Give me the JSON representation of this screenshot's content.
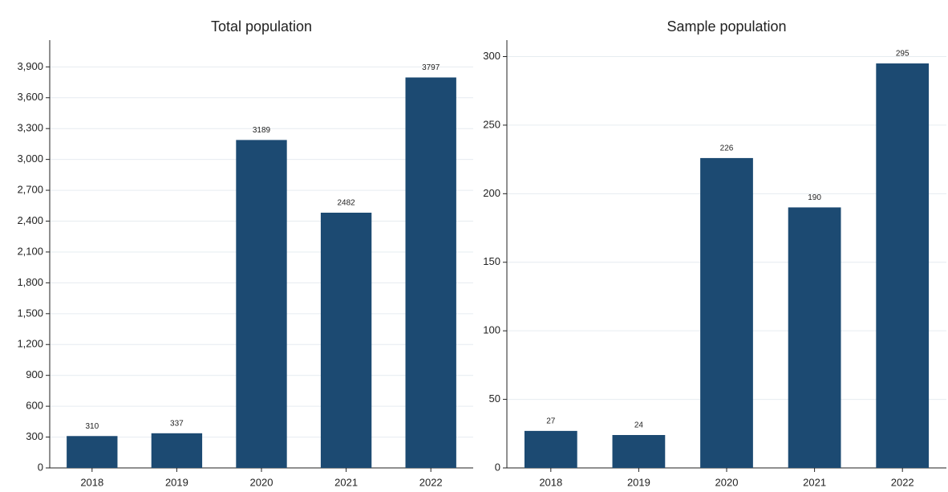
{
  "chart_data": [
    {
      "type": "bar",
      "title": "Total population",
      "categories": [
        "2018",
        "2019",
        "2020",
        "2021",
        "2022"
      ],
      "values": [
        310,
        337,
        3189,
        2482,
        3797
      ],
      "color": "#1c4a72",
      "ylim": [
        0,
        4160
      ],
      "yticks": [
        0,
        300,
        600,
        900,
        {
          "value": 1200,
          "label": "1,200"
        },
        {
          "value": 1500,
          "label": "1,500"
        },
        {
          "value": 1800,
          "label": "1,800"
        },
        {
          "value": 2100,
          "label": "2,100"
        },
        {
          "value": 2400,
          "label": "2,400"
        },
        {
          "value": 2700,
          "label": "2,700"
        },
        {
          "value": 3000,
          "label": "3,000"
        },
        {
          "value": 3300,
          "label": "3,300"
        },
        {
          "value": 3600,
          "label": "3,600"
        },
        {
          "value": 3900,
          "label": "3,900"
        }
      ],
      "grid": true
    },
    {
      "type": "bar",
      "title": "Sample population",
      "categories": [
        "2018",
        "2019",
        "2020",
        "2021",
        "2022"
      ],
      "values": [
        27,
        24,
        226,
        190,
        295
      ],
      "color": "#1c4a72",
      "ylim": [
        0,
        312
      ],
      "yticks": [
        0,
        50,
        100,
        150,
        200,
        250,
        300
      ],
      "grid": true
    }
  ]
}
